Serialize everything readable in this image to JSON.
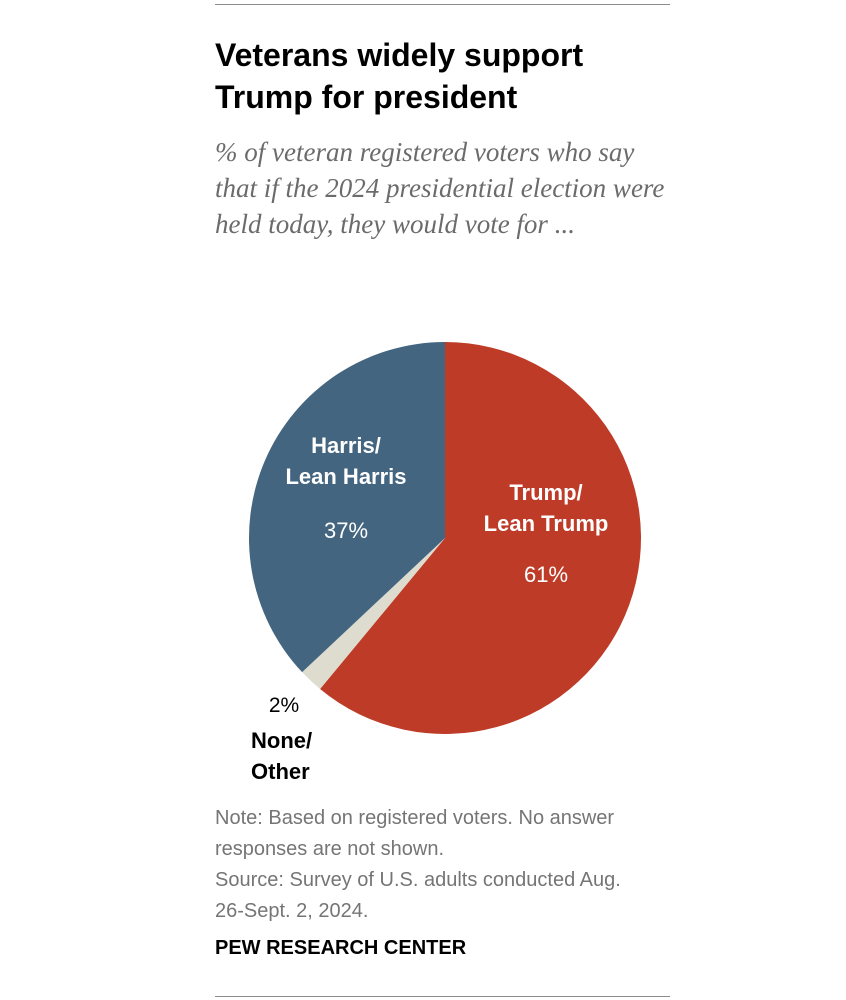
{
  "chart_data": {
    "type": "pie",
    "title": "Veterans widely support Trump for president",
    "subtitle": "% of veteran registered voters who say that if the 2024 presidential election were held today, they would vote for ...",
    "slices": [
      {
        "name": "Trump/ Lean Trump",
        "label_lines": [
          "Trump/",
          "Lean Trump"
        ],
        "value": 61,
        "value_label": "61%",
        "color": "#bd3b27"
      },
      {
        "name": "None/ Other",
        "label_lines": [
          "None/",
          "Other"
        ],
        "value": 2,
        "value_label": "2%",
        "color": "#dedbcf"
      },
      {
        "name": "Harris/ Lean Harris",
        "label_lines": [
          "Harris/",
          "Lean Harris"
        ],
        "value": 37,
        "value_label": "37%",
        "color": "#436580"
      }
    ]
  },
  "notes": {
    "note": "Note: Based on registered voters. No answer\nresponses are not shown.",
    "source": "Source: Survey of U.S. adults conducted Aug.\n26-Sept. 2, 2024."
  },
  "credit": "PEW RESEARCH CENTER"
}
